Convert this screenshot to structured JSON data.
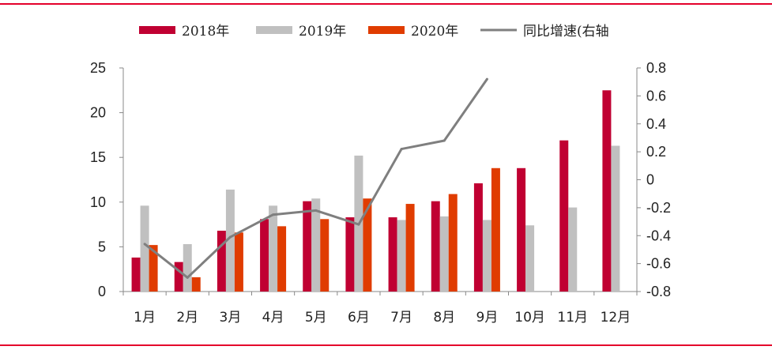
{
  "style": {
    "rule_color": "#e4002b",
    "axis_color": "#888888"
  },
  "chart_data": {
    "type": "bar",
    "title": "",
    "categories": [
      "1月",
      "2月",
      "3月",
      "4月",
      "5月",
      "6月",
      "7月",
      "8月",
      "9月",
      "10月",
      "11月",
      "12月"
    ],
    "series": [
      {
        "name": "2018年",
        "type": "bar",
        "color": "#c00032",
        "values": [
          3.8,
          3.3,
          6.8,
          8.1,
          10.1,
          8.3,
          8.3,
          10.1,
          12.1,
          13.8,
          16.9,
          22.5
        ]
      },
      {
        "name": "2019年",
        "type": "bar",
        "color": "#c0c0c0",
        "values": [
          9.6,
          5.3,
          11.4,
          9.6,
          10.4,
          15.2,
          8.0,
          8.4,
          8.0,
          7.4,
          9.4,
          16.3
        ]
      },
      {
        "name": "2020年",
        "type": "bar",
        "color": "#e03c00",
        "values": [
          5.2,
          1.6,
          6.6,
          7.3,
          8.1,
          10.4,
          9.8,
          10.9,
          13.8,
          null,
          null,
          null
        ]
      },
      {
        "name": "同比增速(右轴",
        "type": "line",
        "axis": "right",
        "color": "#7f7f7f",
        "values": [
          -0.46,
          -0.7,
          -0.41,
          -0.25,
          -0.22,
          -0.32,
          0.22,
          0.28,
          0.72,
          null,
          null,
          null
        ]
      }
    ],
    "y_left": {
      "min": 0,
      "max": 25,
      "ticks": [
        "0",
        "5",
        "10",
        "15",
        "20",
        "25"
      ]
    },
    "y_right": {
      "min": -0.8,
      "max": 0.8,
      "ticks": [
        "-0.8",
        "-0.6",
        "-0.4",
        "-0.2",
        "0",
        "0.2",
        "0.4",
        "0.6",
        "0.8"
      ]
    },
    "grid": false,
    "legend_position": "top"
  }
}
